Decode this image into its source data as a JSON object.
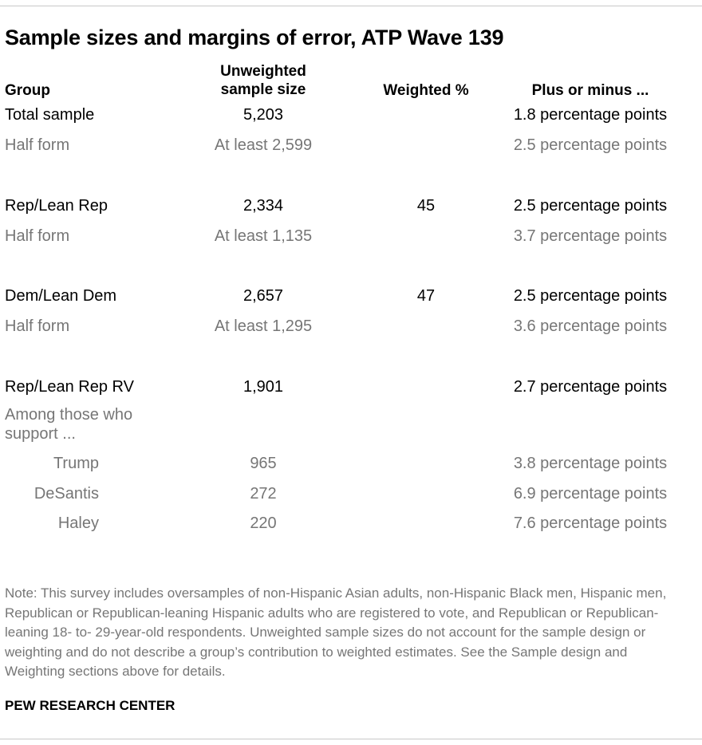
{
  "title": "Sample sizes and margins of error, ATP Wave 139",
  "headers": {
    "group": "Group",
    "unweighted_line1": "Unweighted",
    "unweighted_line2": "sample size",
    "weighted": "Weighted %",
    "plus_minus": "Plus or minus ..."
  },
  "rows": [
    {
      "group": "Total sample",
      "unweighted": "5,203",
      "weighted": "",
      "moe": "1.8 percentage points"
    },
    {
      "group": "Half form",
      "unweighted": "At least 2,599",
      "weighted": "",
      "moe": "2.5 percentage points"
    },
    {
      "group": "Rep/Lean Rep",
      "unweighted": "2,334",
      "weighted": "45",
      "moe": "2.5 percentage points"
    },
    {
      "group": "Half form",
      "unweighted": "At least 1,135",
      "weighted": "",
      "moe": "3.7 percentage points"
    },
    {
      "group": "Dem/Lean Dem",
      "unweighted": "2,657",
      "weighted": "47",
      "moe": "2.5 percentage points"
    },
    {
      "group": "Half form",
      "unweighted": "At least 1,295",
      "weighted": "",
      "moe": "3.6 percentage points"
    },
    {
      "group": "Rep/Lean Rep RV",
      "unweighted": "1,901",
      "weighted": "",
      "moe": "2.7 percentage points"
    },
    {
      "group": "Among those who support ...",
      "unweighted": "",
      "weighted": "",
      "moe": ""
    },
    {
      "group": "Trump",
      "unweighted": "965",
      "weighted": "",
      "moe": "3.8 percentage points"
    },
    {
      "group": "DeSantis",
      "unweighted": "272",
      "weighted": "",
      "moe": "6.9 percentage points"
    },
    {
      "group": "Haley",
      "unweighted": "220",
      "weighted": "",
      "moe": "7.6 percentage points"
    }
  ],
  "note": "Note: This survey includes oversamples of non-Hispanic Asian adults, non-Hispanic Black men, Hispanic men, Republican or Republican-leaning Hispanic adults who are registered to vote, and Republican or Republican-leaning 18- to- 29-year-old respondents. Unweighted sample sizes do not account for the sample design or weighting and do not describe a group’s contribution to weighted estimates. See the Sample design and Weighting sections above for details.",
  "source": "PEW RESEARCH CENTER"
}
